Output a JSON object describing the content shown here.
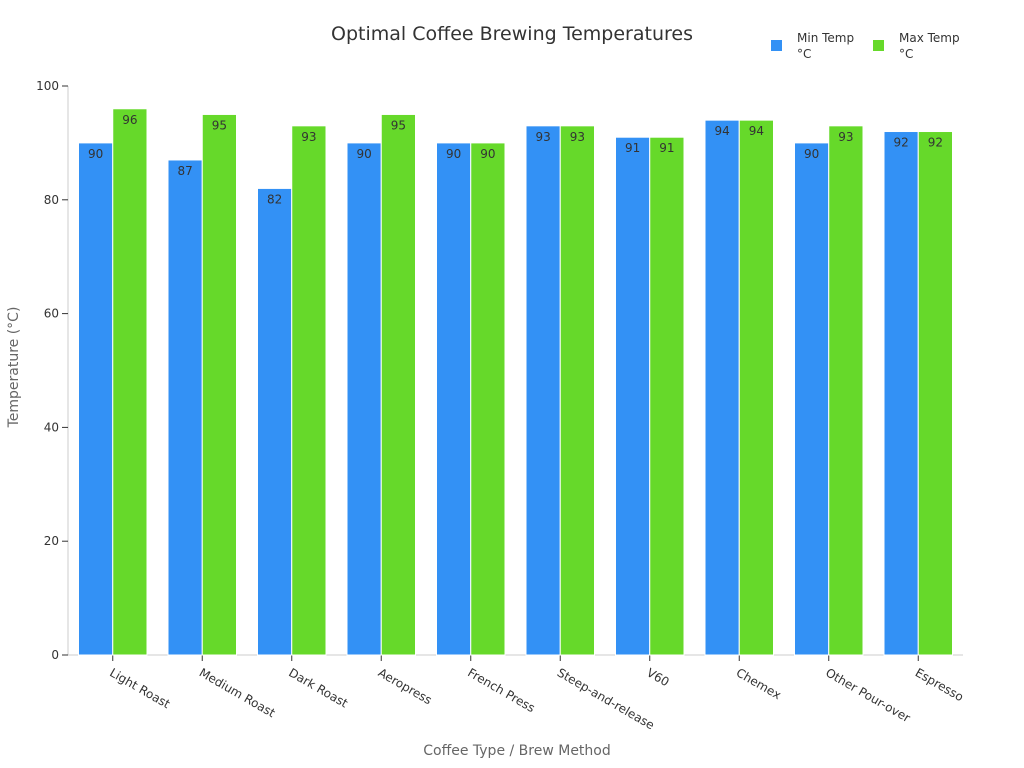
{
  "chart_data": {
    "type": "bar",
    "title": "Optimal Coffee Brewing Temperatures",
    "xlabel": "Coffee Type / Brew Method",
    "ylabel": "Temperature (°C)",
    "ylim": [
      0,
      100
    ],
    "yticks": [
      0,
      20,
      40,
      60,
      80,
      100
    ],
    "grid": false,
    "legend_position": "top-right",
    "categories": [
      "Light Roast",
      "Medium Roast",
      "Dark Roast",
      "Aeropress",
      "French Press",
      "Steep-and-release",
      "V60",
      "Chemex",
      "Other Pour-over",
      "Espresso"
    ],
    "series": [
      {
        "name": "Min Temp °C",
        "legend_lines": [
          "Min Temp",
          "°C"
        ],
        "color": "#3391f5",
        "values": [
          90,
          87,
          82,
          90,
          90,
          93,
          91,
          94,
          90,
          92
        ]
      },
      {
        "name": "Max Temp °C",
        "legend_lines": [
          "Max Temp",
          "°C"
        ],
        "color": "#66d92a",
        "values": [
          96,
          95,
          93,
          95,
          90,
          93,
          91,
          94,
          93,
          92
        ]
      }
    ]
  }
}
